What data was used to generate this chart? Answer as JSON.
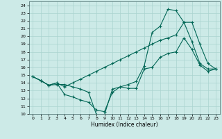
{
  "title": "",
  "xlabel": "Humidex (Indice chaleur)",
  "background_color": "#cceae7",
  "grid_color": "#aad4d0",
  "line_color": "#006655",
  "xlim": [
    -0.5,
    23.5
  ],
  "ylim": [
    10,
    24.5
  ],
  "xticks": [
    0,
    1,
    2,
    3,
    4,
    5,
    6,
    7,
    8,
    9,
    10,
    11,
    12,
    13,
    14,
    15,
    16,
    17,
    18,
    19,
    20,
    21,
    22,
    23
  ],
  "yticks": [
    10,
    11,
    12,
    13,
    14,
    15,
    16,
    17,
    18,
    19,
    20,
    21,
    22,
    23,
    24
  ],
  "line1_x": [
    0,
    1,
    2,
    3,
    4,
    5,
    6,
    7,
    8,
    9,
    10,
    11,
    12,
    13,
    14,
    15,
    16,
    17,
    18,
    19,
    20,
    21,
    22,
    23
  ],
  "line1_y": [
    14.8,
    14.3,
    13.7,
    13.8,
    13.8,
    13.5,
    13.2,
    12.8,
    9.9,
    9.9,
    13.2,
    13.5,
    13.8,
    14.2,
    16.2,
    20.5,
    21.3,
    23.5,
    23.3,
    21.8,
    19.3,
    16.5,
    15.8,
    15.8
  ],
  "line2_x": [
    0,
    1,
    2,
    3,
    4,
    5,
    6,
    7,
    8,
    9,
    10,
    11,
    12,
    13,
    14,
    15,
    16,
    17,
    18,
    19,
    20,
    21,
    22,
    23
  ],
  "line2_y": [
    14.8,
    14.3,
    13.7,
    14.0,
    12.5,
    12.2,
    11.8,
    11.5,
    10.5,
    10.3,
    12.8,
    13.5,
    13.3,
    13.3,
    15.8,
    16.0,
    17.3,
    17.8,
    18.0,
    19.8,
    18.3,
    16.3,
    15.5,
    15.8
  ],
  "line3_x": [
    0,
    1,
    2,
    3,
    4,
    5,
    6,
    7,
    8,
    9,
    10,
    11,
    12,
    13,
    14,
    15,
    16,
    17,
    18,
    19,
    20,
    21,
    22,
    23
  ],
  "line3_y": [
    14.8,
    14.3,
    13.7,
    14.0,
    13.5,
    14.0,
    14.5,
    15.0,
    15.5,
    16.0,
    16.5,
    17.0,
    17.5,
    18.0,
    18.5,
    19.0,
    19.5,
    19.8,
    20.2,
    21.8,
    21.8,
    19.0,
    16.5,
    15.8
  ]
}
